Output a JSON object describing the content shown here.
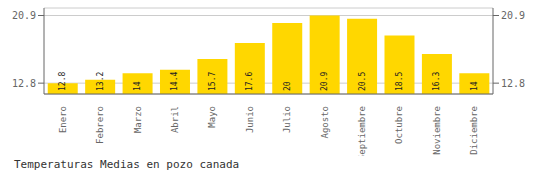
{
  "chart_data": {
    "type": "bar",
    "title": "Temperaturas Medias en pozo canada",
    "categories": [
      "Enero",
      "Febrero",
      "Marzo",
      "Abril",
      "Mayo",
      "Junio",
      "Julio",
      "Agosto",
      "Septiembre",
      "Octubre",
      "Noviembre",
      "Diciembre"
    ],
    "values": [
      12.8,
      13.2,
      14.0,
      14.4,
      15.7,
      17.6,
      20.0,
      20.9,
      20.5,
      18.5,
      16.3,
      14.0
    ],
    "color": "#FFD700",
    "ylim": [
      11.5,
      21.8
    ],
    "yticks": [
      12.8,
      20.9
    ],
    "y2lim": [
      11.5,
      21.8
    ],
    "y2ticks": [
      12.8,
      20.9
    ],
    "grid": true,
    "data_labels": true
  }
}
